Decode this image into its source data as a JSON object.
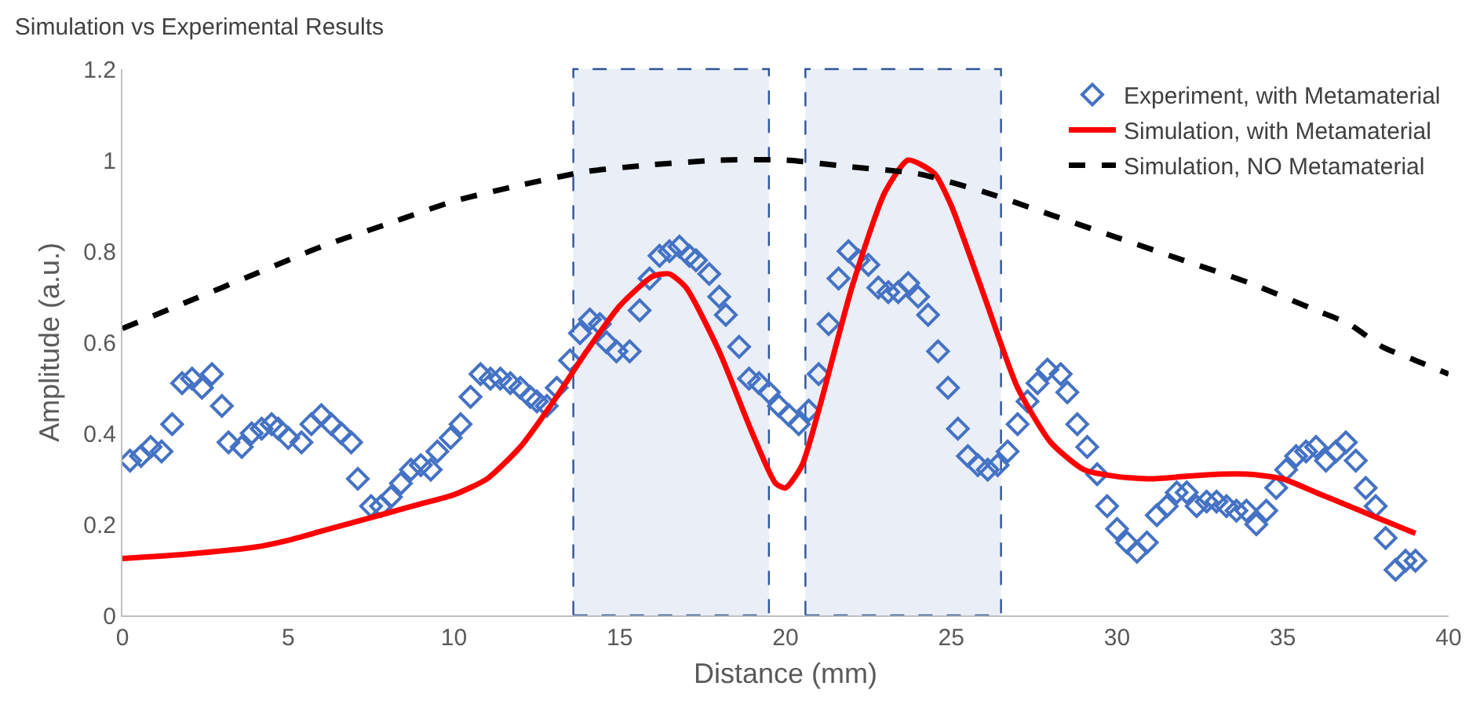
{
  "chart_data": {
    "type": "scatter",
    "title": "Simulation vs Experimental Results",
    "xlabel": "Distance (mm)",
    "ylabel": "Amplitude (a.u.)",
    "xlim": [
      0,
      40
    ],
    "xticks": [
      0,
      5,
      10,
      15,
      20,
      25,
      30,
      35,
      40
    ],
    "ylim": [
      0,
      1.2
    ],
    "yticks": [
      0,
      0.2,
      0.4,
      0.6,
      0.8,
      1,
      1.2
    ],
    "grid": false,
    "legend": "top right",
    "series": [
      {
        "name": "Experiment, with Metamaterial",
        "marker": "diamond",
        "color": "#4472c4",
        "x": [
          0.23,
          0.56,
          0.85,
          1.18,
          1.5,
          1.8,
          2.1,
          2.4,
          2.7,
          3.0,
          3.2,
          3.6,
          3.9,
          4.2,
          4.5,
          4.7,
          5.0,
          5.4,
          5.7,
          6.0,
          6.3,
          6.6,
          6.9,
          7.1,
          7.5,
          7.8,
          8.1,
          8.4,
          8.7,
          9.0,
          9.3,
          9.5,
          9.9,
          10.2,
          10.5,
          10.8,
          11.1,
          11.4,
          11.7,
          12.0,
          12.3,
          12.5,
          12.8,
          13.1,
          13.5,
          13.8,
          14.1,
          14.4,
          14.6,
          14.9,
          15.3,
          15.6,
          15.9,
          16.2,
          16.5,
          16.8,
          17.1,
          17.3,
          17.7,
          18.0,
          18.2,
          18.6,
          18.9,
          19.2,
          19.5,
          19.8,
          20.1,
          20.4,
          20.7,
          21.0,
          21.3,
          21.6,
          21.9,
          22.2,
          22.5,
          22.8,
          23.1,
          23.4,
          23.7,
          24.0,
          24.3,
          24.6,
          24.9,
          25.2,
          25.5,
          25.8,
          26.1,
          26.4,
          26.7,
          27.0,
          27.3,
          27.6,
          27.9,
          28.3,
          28.5,
          28.8,
          29.1,
          29.4,
          29.7,
          30.0,
          30.3,
          30.6,
          30.9,
          31.2,
          31.5,
          31.8,
          32.1,
          32.4,
          32.7,
          33.0,
          33.3,
          33.6,
          33.9,
          34.2,
          34.5,
          34.8,
          35.1,
          35.4,
          35.7,
          36.0,
          36.3,
          36.6,
          36.9,
          37.2,
          37.5,
          37.8,
          38.1,
          38.4,
          38.7,
          39.0
        ],
        "values": [
          0.34,
          0.35,
          0.37,
          0.36,
          0.42,
          0.51,
          0.52,
          0.5,
          0.53,
          0.46,
          0.38,
          0.37,
          0.4,
          0.41,
          0.42,
          0.41,
          0.39,
          0.38,
          0.42,
          0.44,
          0.42,
          0.4,
          0.38,
          0.3,
          0.24,
          0.24,
          0.26,
          0.29,
          0.32,
          0.33,
          0.32,
          0.36,
          0.39,
          0.42,
          0.48,
          0.53,
          0.52,
          0.52,
          0.51,
          0.5,
          0.48,
          0.47,
          0.46,
          0.5,
          0.56,
          0.62,
          0.65,
          0.64,
          0.6,
          0.58,
          0.58,
          0.67,
          0.74,
          0.79,
          0.8,
          0.81,
          0.79,
          0.78,
          0.75,
          0.7,
          0.66,
          0.59,
          0.52,
          0.51,
          0.49,
          0.46,
          0.44,
          0.42,
          0.45,
          0.53,
          0.64,
          0.74,
          0.8,
          0.78,
          0.77,
          0.72,
          0.71,
          0.71,
          0.73,
          0.7,
          0.66,
          0.58,
          0.5,
          0.41,
          0.35,
          0.33,
          0.32,
          0.33,
          0.36,
          0.42,
          0.47,
          0.51,
          0.54,
          0.53,
          0.49,
          0.42,
          0.37,
          0.31,
          0.24,
          0.19,
          0.16,
          0.14,
          0.16,
          0.22,
          0.24,
          0.27,
          0.27,
          0.24,
          0.25,
          0.25,
          0.24,
          0.23,
          0.23,
          0.2,
          0.23,
          0.28,
          0.32,
          0.35,
          0.36,
          0.37,
          0.34,
          0.36,
          0.38,
          0.34,
          0.28,
          0.24,
          0.17,
          0.1,
          0.12,
          0.12
        ]
      },
      {
        "name": "Simulation, with Metamaterial",
        "type": "line",
        "line_style": "solid",
        "color": "#ff0000",
        "x": [
          0,
          2,
          4,
          5,
          6,
          7,
          8,
          9,
          10,
          11,
          12,
          13,
          14,
          15,
          16,
          16.5,
          17,
          18,
          19,
          19.7,
          20,
          20.5,
          21,
          22,
          23,
          23.7,
          24.5,
          25,
          26,
          27,
          28,
          29,
          30,
          31,
          32,
          33,
          34,
          35,
          36,
          37,
          38,
          39
        ],
        "values": [
          0.125,
          0.135,
          0.15,
          0.165,
          0.185,
          0.205,
          0.225,
          0.245,
          0.265,
          0.3,
          0.37,
          0.47,
          0.58,
          0.68,
          0.745,
          0.75,
          0.72,
          0.58,
          0.4,
          0.29,
          0.28,
          0.33,
          0.45,
          0.72,
          0.93,
          1.0,
          0.97,
          0.9,
          0.7,
          0.5,
          0.38,
          0.32,
          0.305,
          0.3,
          0.305,
          0.31,
          0.31,
          0.3,
          0.27,
          0.24,
          0.21,
          0.18
        ]
      },
      {
        "name": "Simulation, NO Metamaterial",
        "type": "line",
        "line_style": "dashed",
        "color": "#000000",
        "x": [
          0,
          2,
          4,
          6,
          8,
          10,
          12,
          14,
          16,
          18,
          20,
          22,
          24,
          26,
          28,
          30,
          32,
          34,
          36,
          37,
          38,
          39,
          40
        ],
        "values": [
          0.63,
          0.69,
          0.75,
          0.81,
          0.86,
          0.91,
          0.945,
          0.975,
          0.99,
          1.0,
          1.0,
          0.985,
          0.97,
          0.93,
          0.88,
          0.83,
          0.78,
          0.73,
          0.67,
          0.64,
          0.59,
          0.56,
          0.53
        ]
      }
    ],
    "bands": [
      {
        "axis": "x",
        "from": 13.6,
        "to": 19.5,
        "color": "#e9eef7"
      },
      {
        "axis": "x",
        "from": 20.6,
        "to": 26.5,
        "color": "#e9eef7"
      }
    ]
  }
}
